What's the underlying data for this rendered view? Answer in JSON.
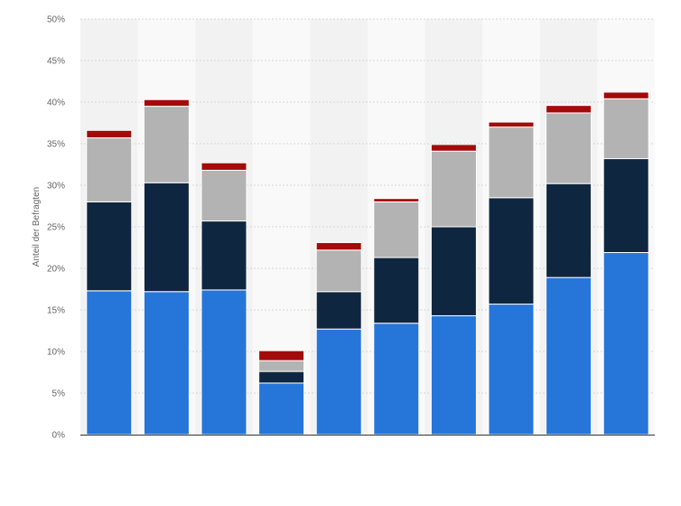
{
  "chart_data": {
    "type": "bar",
    "stacked": true,
    "ylabel": "Anteil der Befragten",
    "ylim": [
      0,
      50
    ],
    "yticks": [
      "0%",
      "5%",
      "10%",
      "15%",
      "20%",
      "25%",
      "30%",
      "35%",
      "40%",
      "45%",
      "50%"
    ],
    "grid": true,
    "legend": "none",
    "categories": [
      "",
      "",
      "",
      "",
      "",
      "",
      "",
      "",
      "",
      ""
    ],
    "series": [
      {
        "color": "#2675d9",
        "values": [
          17.3,
          17.2,
          17.4,
          6.2,
          12.7,
          13.4,
          14.3,
          15.7,
          18.9,
          21.9
        ]
      },
      {
        "color": "#0f2640",
        "values": [
          10.7,
          13.1,
          8.3,
          1.4,
          4.5,
          7.9,
          10.7,
          12.8,
          11.3,
          11.3
        ]
      },
      {
        "color": "#b3b3b3",
        "values": [
          7.7,
          9.2,
          6.1,
          1.3,
          5.0,
          6.7,
          9.1,
          8.5,
          8.5,
          7.2
        ]
      },
      {
        "color": "#a30a0a",
        "values": [
          0.9,
          0.8,
          0.9,
          1.2,
          0.9,
          0.4,
          0.8,
          0.6,
          0.9,
          0.8
        ]
      }
    ]
  }
}
